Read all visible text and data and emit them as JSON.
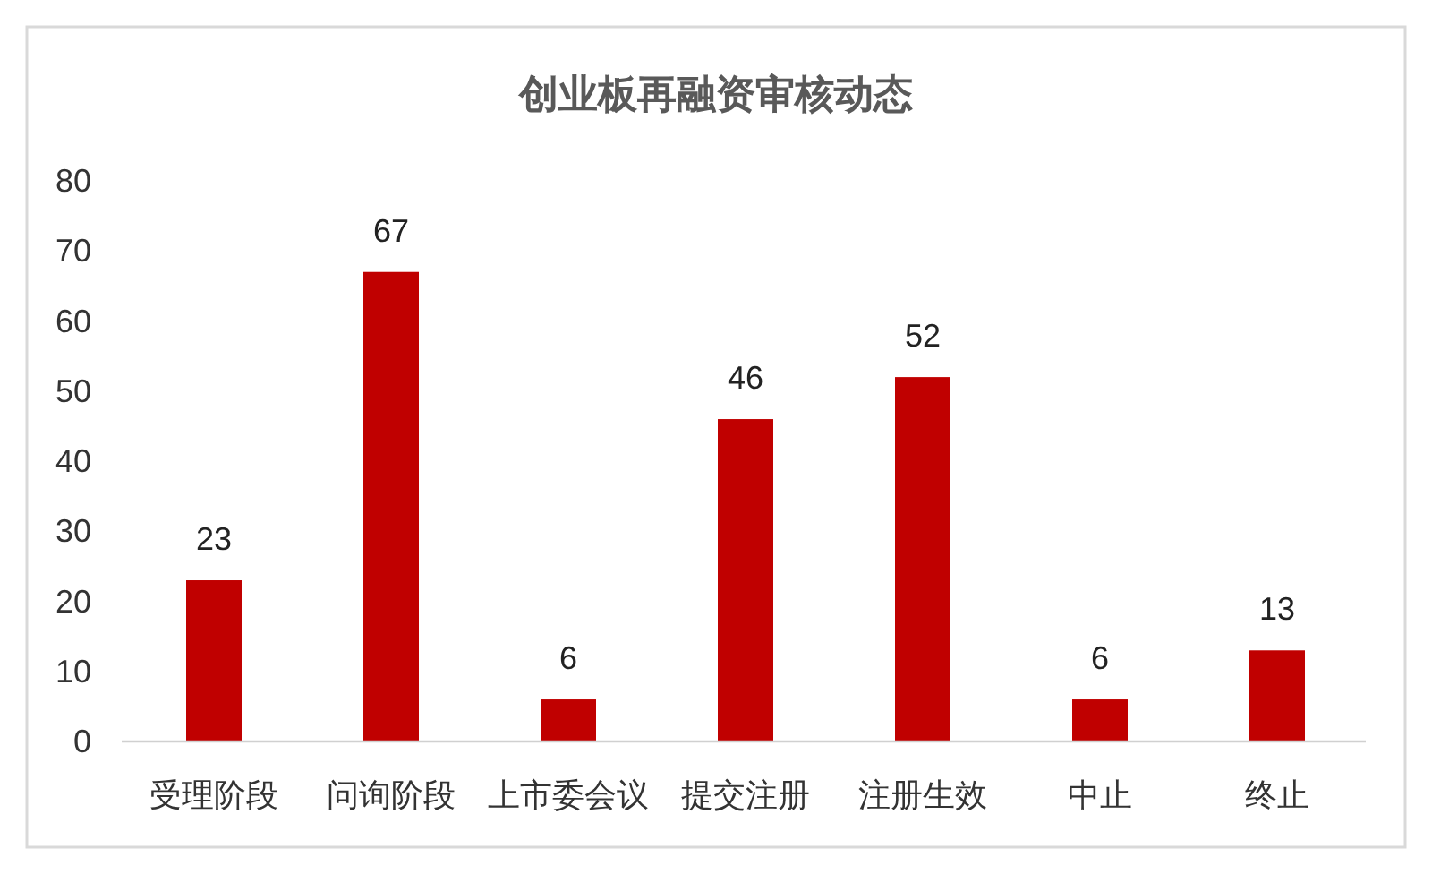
{
  "chart_data": {
    "type": "bar",
    "title": "创业板再融资审核动态",
    "categories": [
      "受理阶段",
      "问询阶段",
      "上市委会议",
      "提交注册",
      "注册生效",
      "中止",
      "终止"
    ],
    "values": [
      23,
      67,
      6,
      46,
      52,
      6,
      13
    ],
    "color": "#c00000",
    "ylim": [
      0,
      80
    ],
    "yticks": [
      0,
      10,
      20,
      30,
      40,
      50,
      60,
      70,
      80
    ],
    "data_labels": true
  }
}
